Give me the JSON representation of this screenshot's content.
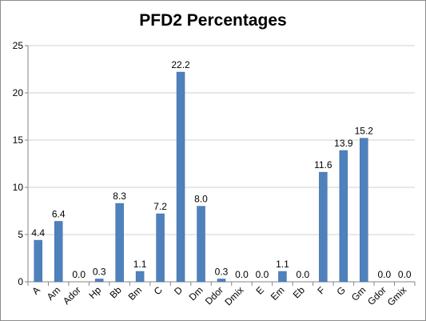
{
  "chart_data": {
    "type": "bar",
    "title": "PFD2 Percentages",
    "xlabel": "",
    "ylabel": "",
    "ylim": [
      0,
      25
    ],
    "yticks": [
      0,
      5,
      10,
      15,
      20,
      25
    ],
    "grid": true,
    "legend": "none",
    "categories": [
      "A",
      "Am",
      "Ador",
      "Hp",
      "Bb",
      "Bm",
      "C",
      "D",
      "Dm",
      "Ddor",
      "Dmix",
      "E",
      "Em",
      "Eb",
      "F",
      "G",
      "Gm",
      "Gdor",
      "Gmix"
    ],
    "values": [
      4.4,
      6.4,
      0.0,
      0.3,
      8.3,
      1.1,
      7.2,
      22.2,
      8.0,
      0.3,
      0.0,
      0.0,
      1.1,
      0.0,
      11.6,
      13.9,
      15.2,
      0.0,
      0.0
    ],
    "value_labels": [
      "4.4",
      "6.4",
      "0.0",
      "0.3",
      "8.3",
      "1.1",
      "7.2",
      "22.2",
      "8.0",
      "0.3",
      "0.0",
      "0.0",
      "1.1",
      "0.0",
      "11.6",
      "13.9",
      "15.2",
      "0.0",
      "0.0"
    ],
    "colors": {
      "bar": "#4f81bd",
      "bar_edge": "#3a6aa0",
      "grid": "#d0d0d0",
      "axis": "#868686"
    }
  }
}
